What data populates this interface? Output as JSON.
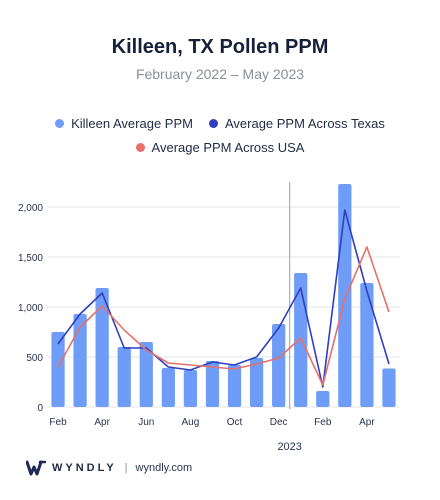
{
  "chart_data": {
    "type": "bar",
    "title": "Killeen, TX Pollen PPM",
    "subtitle": "February 2022 – May 2023",
    "x_tick_labels": [
      "Feb",
      "Apr",
      "Jun",
      "Aug",
      "Oct",
      "Dec",
      "Feb",
      "Apr"
    ],
    "year_label": "2023",
    "y_tick_labels": [
      "0",
      "500",
      "1,000",
      "1,500",
      "2,000"
    ],
    "ylim": [
      0,
      2250
    ],
    "grid": true,
    "legend_placement": "top",
    "categories": [
      "Feb 2022",
      "Mar 2022",
      "Apr 2022",
      "May 2022",
      "Jun 2022",
      "Jul 2022",
      "Aug 2022",
      "Sep 2022",
      "Oct 2022",
      "Nov 2022",
      "Dec 2022",
      "Jan 2023",
      "Feb 2023",
      "Mar 2023",
      "Apr 2023",
      "May 2023"
    ],
    "series": [
      {
        "name": "Killeen Average PPM",
        "kind": "bar",
        "color": "#6e9cf6",
        "values": [
          750,
          930,
          1190,
          600,
          650,
          390,
          370,
          460,
          420,
          490,
          830,
          1340,
          160,
          2230,
          1240,
          385
        ]
      },
      {
        "name": "Average PPM Across Texas",
        "kind": "line",
        "color": "#2f3fbf",
        "values": [
          630,
          930,
          1140,
          590,
          590,
          400,
          370,
          450,
          420,
          500,
          790,
          1190,
          200,
          1970,
          1160,
          430
        ]
      },
      {
        "name": "Average PPM Across USA",
        "kind": "line",
        "color": "#e8706b",
        "values": [
          400,
          800,
          1010,
          770,
          570,
          440,
          420,
          400,
          380,
          430,
          490,
          690,
          220,
          1080,
          1600,
          950
        ]
      }
    ]
  },
  "footer": {
    "brand": "WYNDLY",
    "separator": "|",
    "site": "wyndly.com"
  }
}
